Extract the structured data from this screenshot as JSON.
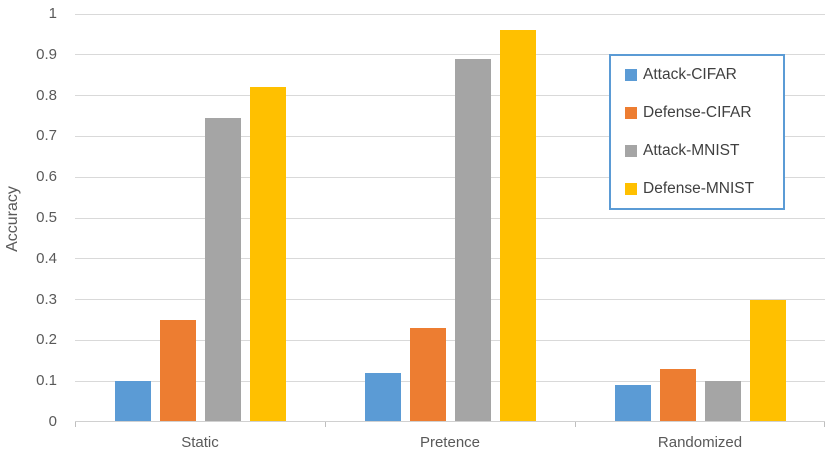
{
  "chart_data": {
    "type": "bar",
    "title": "",
    "xlabel": "",
    "ylabel": "Accuracy",
    "categories": [
      "Static",
      "Pretence",
      "Randomized"
    ],
    "series": [
      {
        "name": "Attack-CIFAR",
        "color": "#5B9BD5",
        "values": [
          0.1,
          0.12,
          0.09
        ]
      },
      {
        "name": "Defense-CIFAR",
        "color": "#ED7D31",
        "values": [
          0.25,
          0.23,
          0.13
        ]
      },
      {
        "name": "Attack-MNIST",
        "color": "#A5A5A5",
        "values": [
          0.745,
          0.89,
          0.1
        ]
      },
      {
        "name": "Defense-MNIST",
        "color": "#FFC000",
        "values": [
          0.82,
          0.96,
          0.3
        ]
      }
    ],
    "ylim": [
      0,
      1
    ],
    "ytick_step": 0.1,
    "ytick_labels": [
      "0",
      "0.1",
      "0.2",
      "0.3",
      "0.4",
      "0.5",
      "0.6",
      "0.7",
      "0.8",
      "0.9",
      "1"
    ],
    "grid": true,
    "legend_position": "inside-top-right",
    "legend_border_color": "#5B9BD5",
    "gridline_color": "#D9D9D9",
    "axis_text_color": "#595959",
    "background_color": "#FFFFFF"
  }
}
